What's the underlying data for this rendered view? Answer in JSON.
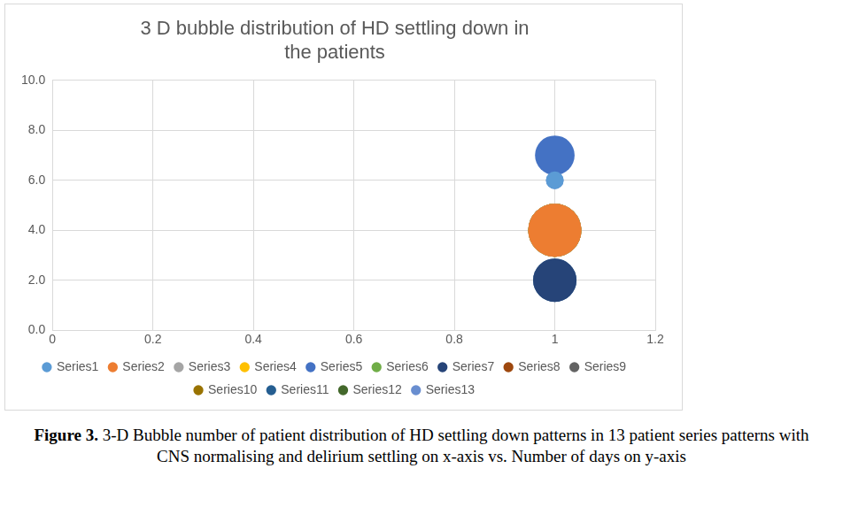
{
  "chart_data": {
    "type": "bubble",
    "title": [
      "3 D bubble distribution of HD settling down in",
      "the patients"
    ],
    "x": [
      1
    ],
    "series": [
      {
        "name": "Series1",
        "color": "#5b9bd5",
        "values": [
          6
        ],
        "sizes": [
          1
        ]
      },
      {
        "name": "Series2",
        "color": "#ed7d31",
        "values": [
          4
        ],
        "sizes": [
          9
        ]
      },
      {
        "name": "Series3",
        "color": "#a5a5a5",
        "values": [
          4
        ],
        "sizes": [
          9
        ]
      },
      {
        "name": "Series4",
        "color": "#ffc000",
        "values": [
          4
        ],
        "sizes": [
          9
        ]
      },
      {
        "name": "Series5",
        "color": "#4472c4",
        "values": [
          7
        ],
        "sizes": [
          5
        ]
      },
      {
        "name": "Series6",
        "color": "#70ad47",
        "values": [
          4
        ],
        "sizes": [
          9
        ]
      },
      {
        "name": "Series7",
        "color": "#264478",
        "values": [
          2
        ],
        "sizes": [
          6
        ]
      },
      {
        "name": "Series8",
        "color": "#9e480e",
        "values": [
          4
        ],
        "sizes": [
          9
        ]
      },
      {
        "name": "Series9",
        "color": "#636363",
        "values": [
          4
        ],
        "sizes": [
          9
        ]
      },
      {
        "name": "Series10",
        "color": "#997300",
        "values": [
          4
        ],
        "sizes": [
          9
        ]
      },
      {
        "name": "Series11",
        "color": "#255e91",
        "values": [
          2
        ],
        "sizes": [
          6
        ]
      },
      {
        "name": "Series12",
        "color": "#43682b",
        "values": [
          4
        ],
        "sizes": [
          8
        ]
      },
      {
        "name": "Series13",
        "color": "#698ed0",
        "values": [
          6
        ],
        "sizes": [
          1
        ]
      }
    ],
    "xlim": [
      0,
      1.2
    ],
    "xticks": [
      0,
      0.2,
      0.4,
      0.6,
      0.8,
      1,
      1.2
    ],
    "ylim": [
      0,
      10
    ],
    "yticks": [
      {
        "value": 0,
        "label": "0.0"
      },
      {
        "value": 2,
        "label": "2.0"
      },
      {
        "value": 4,
        "label": "4.0"
      },
      {
        "value": 6,
        "label": "6.0"
      },
      {
        "value": 8,
        "label": "8.0"
      },
      {
        "value": 10,
        "label": "10.0"
      }
    ],
    "grid": true,
    "legend": "bottom",
    "caption": {
      "label": "Figure 3.",
      "text": "3-D Bubble number of patient distribution of HD settling down patterns in 13 patient series patterns with CNS normalising and delirium settling on x-axis vs. Number of days on y-axis"
    }
  }
}
